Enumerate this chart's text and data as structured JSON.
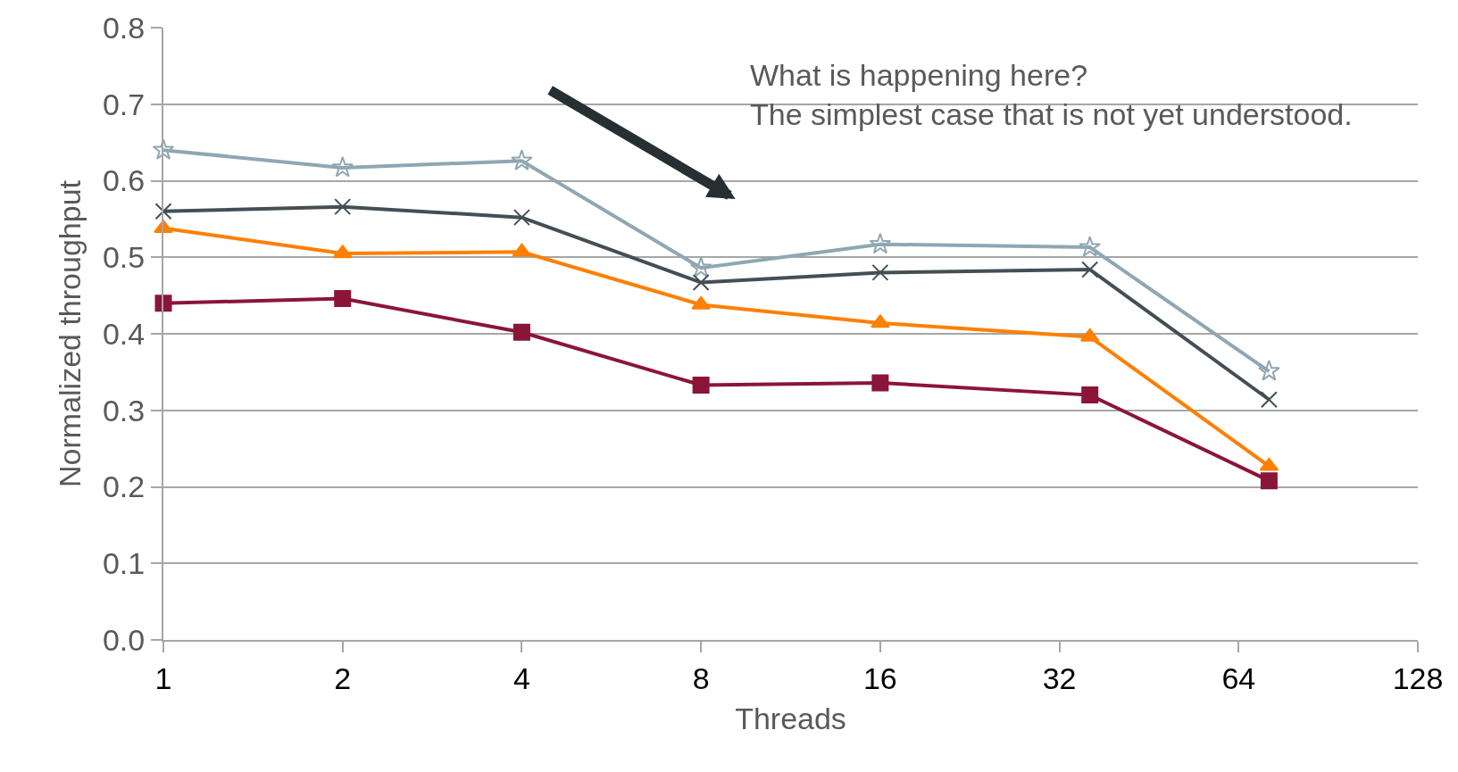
{
  "chart_data": {
    "type": "line",
    "xlabel": "Threads",
    "ylabel": "Normalized throughput",
    "x": [
      1,
      2,
      4,
      8,
      16,
      36,
      72
    ],
    "series": [
      {
        "color": "#8fa7b3",
        "marker": "star",
        "values": [
          0.64,
          0.617,
          0.626,
          0.486,
          0.517,
          0.513,
          0.351
        ]
      },
      {
        "color": "#434f55",
        "marker": "cross",
        "values": [
          0.56,
          0.566,
          0.552,
          0.467,
          0.48,
          0.484,
          0.314
        ]
      },
      {
        "color": "#ff7f00",
        "marker": "triangle",
        "values": [
          0.538,
          0.505,
          0.507,
          0.438,
          0.414,
          0.396,
          0.227
        ]
      },
      {
        "color": "#8b1538",
        "marker": "square",
        "values": [
          0.44,
          0.446,
          0.402,
          0.333,
          0.336,
          0.32,
          0.208
        ]
      }
    ],
    "log": "x",
    "xlim": [
      1,
      128
    ],
    "xticks": [
      1,
      2,
      4,
      8,
      16,
      32,
      64,
      128
    ],
    "ylim": [
      0,
      0.8
    ],
    "yticks": [
      {
        "value": 0,
        "label": "0.0"
      },
      0.1,
      0.2,
      0.3,
      0.4,
      0.5,
      0.6,
      0.7,
      0.8
    ],
    "grid": "y",
    "legend": false,
    "line_style": "solid",
    "annotations": [
      "What is happening here?  The simplest case that is not yet understood."
    ]
  }
}
